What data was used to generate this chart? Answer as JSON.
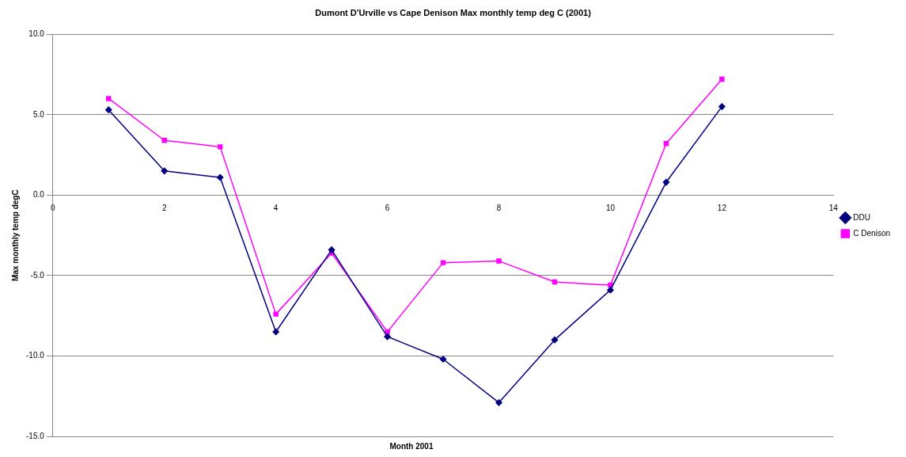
{
  "chart_data": {
    "type": "line",
    "title": "Dumont D'Urville vs Cape Denison Max monthly temp deg C (2001)",
    "xlabel": "Month 2001",
    "ylabel": "Max monthly temp degC",
    "x": [
      1,
      2,
      3,
      4,
      5,
      6,
      7,
      8,
      9,
      10,
      11,
      12
    ],
    "series": [
      {
        "name": "DDU",
        "color": "#000080",
        "marker": "diamond",
        "values": [
          5.3,
          1.5,
          1.1,
          -8.5,
          -3.4,
          -8.8,
          -10.2,
          -12.9,
          -9.0,
          -5.9,
          0.8,
          5.5
        ]
      },
      {
        "name": "C Denison",
        "color": "#ff00ff",
        "marker": "square",
        "values": [
          6.0,
          3.4,
          3.0,
          -7.4,
          -3.6,
          -8.5,
          -4.2,
          -4.1,
          -5.4,
          -5.6,
          3.2,
          7.2
        ]
      }
    ],
    "xlim": [
      0,
      14
    ],
    "xticks": [
      0,
      2,
      4,
      6,
      8,
      10,
      12,
      14
    ],
    "ylim": [
      -15,
      10
    ],
    "yticks": [
      {
        "value": -15,
        "label": "-15.0"
      },
      {
        "value": -10,
        "label": "-10.0"
      },
      {
        "value": -5,
        "label": "-5.0"
      },
      {
        "value": 0,
        "label": "0.0"
      },
      {
        "value": 5,
        "label": "5.0"
      },
      {
        "value": 10,
        "label": "10.0"
      }
    ],
    "grid": "y",
    "legend": "right",
    "line_style": "solid"
  }
}
